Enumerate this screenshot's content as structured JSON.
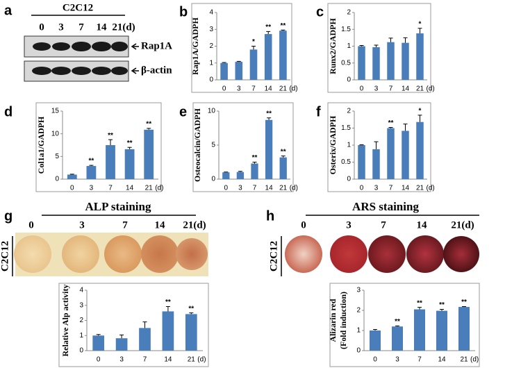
{
  "panel_labels": [
    "a",
    "b",
    "c",
    "d",
    "e",
    "f",
    "g",
    "h"
  ],
  "blot": {
    "sample": "C2C12",
    "days": [
      "0",
      "3",
      "7",
      "14",
      "21(d)"
    ],
    "bands": [
      "Rap1A",
      "β-actin"
    ]
  },
  "staining": [
    {
      "sample": "C2C12",
      "days": [
        "0",
        "3",
        "7",
        "14",
        "21(d)"
      ]
    },
    {
      "sample": "C2C12",
      "days": [
        "0",
        "3",
        "7",
        "14",
        "21(d)"
      ]
    }
  ],
  "chart_data": [
    {
      "type": "bar",
      "ylabel": "Rap1A/GADPH",
      "categories": [
        "0",
        "3",
        "7",
        "14",
        "21"
      ],
      "x_unit": "(d)",
      "values": [
        1,
        1.07,
        1.8,
        2.72,
        2.92
      ],
      "errors": [
        0.03,
        0.03,
        0.2,
        0.15,
        0.04
      ],
      "annotations": [
        null,
        null,
        "*",
        "**",
        "**"
      ],
      "ylim": [
        0,
        4
      ],
      "yticks": [
        0,
        1,
        2,
        3,
        4
      ],
      "color": "#4a7ebb"
    },
    {
      "type": "bar",
      "ylabel": "Runx2/GADPH",
      "categories": [
        "0",
        "3",
        "7",
        "14",
        "21"
      ],
      "x_unit": "(d)",
      "values": [
        1,
        0.97,
        1.12,
        1.1,
        1.38
      ],
      "errors": [
        0.02,
        0.06,
        0.12,
        0.15,
        0.15
      ],
      "annotations": [
        null,
        null,
        null,
        null,
        "*"
      ],
      "ylim": [
        0,
        2
      ],
      "yticks": [
        0,
        0.5,
        1,
        1.5,
        2
      ],
      "color": "#4a7ebb"
    },
    {
      "type": "bar",
      "ylabel": "Col1a1/GADPH",
      "categories": [
        "0",
        "3",
        "7",
        "14",
        "21"
      ],
      "x_unit": "(d)",
      "values": [
        1,
        2.9,
        7.5,
        6.6,
        10.9
      ],
      "errors": [
        0.1,
        0.15,
        1.2,
        0.4,
        0.3
      ],
      "annotations": [
        null,
        "**",
        "**",
        "**",
        "**"
      ],
      "ylim": [
        0,
        15
      ],
      "yticks": [
        0,
        5,
        10,
        15
      ],
      "color": "#4a7ebb"
    },
    {
      "type": "bar",
      "ylabel": "Osteocalcin/GADPH",
      "categories": [
        "0",
        "3",
        "7",
        "14",
        "21"
      ],
      "x_unit": "(d)",
      "values": [
        1,
        1.05,
        2.3,
        8.7,
        3.2
      ],
      "errors": [
        0.05,
        0.1,
        0.2,
        0.3,
        0.2
      ],
      "annotations": [
        null,
        null,
        "**",
        "**",
        "**"
      ],
      "ylim": [
        0,
        10
      ],
      "yticks": [
        0,
        5,
        10
      ],
      "color": "#4a7ebb"
    },
    {
      "type": "bar",
      "ylabel": "Osterix/GADPH",
      "categories": [
        "0",
        "3",
        "7",
        "14",
        "21"
      ],
      "x_unit": "(d)",
      "values": [
        1,
        0.88,
        1.5,
        1.42,
        1.68
      ],
      "errors": [
        0.01,
        0.22,
        0.02,
        0.2,
        0.2
      ],
      "annotations": [
        null,
        null,
        "**",
        null,
        "*"
      ],
      "ylim": [
        0,
        2
      ],
      "yticks": [
        0,
        0.5,
        1,
        1.5,
        2
      ],
      "color": "#4a7ebb"
    },
    {
      "type": "bar",
      "title": "ALP staining",
      "ylabel": "Relative Alp activity",
      "categories": [
        "0",
        "3",
        "7",
        "14",
        "21"
      ],
      "x_unit": "(d)",
      "values": [
        1,
        0.82,
        1.5,
        2.6,
        2.42
      ],
      "errors": [
        0.07,
        0.22,
        0.4,
        0.32,
        0.08
      ],
      "annotations": [
        null,
        null,
        null,
        "**",
        "**"
      ],
      "ylim": [
        0,
        4
      ],
      "yticks": [
        0,
        1,
        2,
        3,
        4
      ],
      "color": "#4a7ebb"
    },
    {
      "type": "bar",
      "title": "ARS staining",
      "ylabel": [
        "Alizarin red",
        "(Fold induction)"
      ],
      "categories": [
        "0",
        "3",
        "7",
        "14",
        "21"
      ],
      "x_unit": "(d)",
      "values": [
        1,
        1.2,
        2.05,
        1.98,
        2.17
      ],
      "errors": [
        0.05,
        0.03,
        0.1,
        0.07,
        0.02
      ],
      "annotations": [
        null,
        "**",
        "**",
        "**",
        "**"
      ],
      "ylim": [
        0,
        3
      ],
      "yticks": [
        0,
        1,
        2,
        3
      ],
      "color": "#4a7ebb"
    }
  ]
}
